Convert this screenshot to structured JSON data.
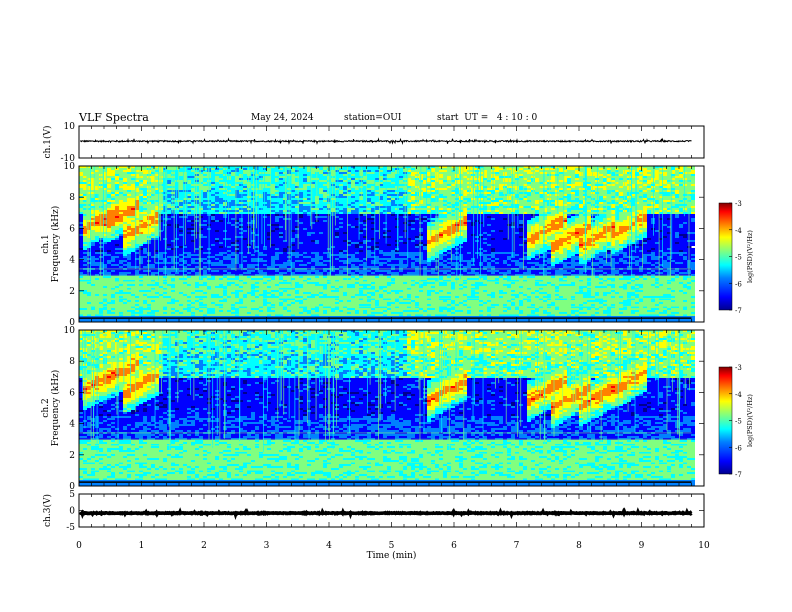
{
  "header": {
    "title": "VLF Spectra",
    "date": "May 24, 2024",
    "station": "station=OUI",
    "start": "start  UT =   4 : 10 : 0"
  },
  "colors": {
    "axis": "#000000",
    "colormap": [
      "#00008f",
      "#0000ff",
      "#0080ff",
      "#00ffff",
      "#80ff80",
      "#ffff00",
      "#ff8000",
      "#ff0000",
      "#800000"
    ],
    "background": "#ffffff"
  },
  "chart_data": [
    {
      "type": "line",
      "panel": "channel-1 waveform",
      "ylabel": "ch.1(V)",
      "ylim": [
        -10,
        10
      ],
      "y_ticks": [
        "10",
        "-10"
      ],
      "xlim": [
        0,
        10
      ],
      "trace_level": 0.5,
      "trace_amplitude": 0.4
    },
    {
      "type": "heatmap",
      "panel": "channel-1 spectrogram",
      "ylabel": "ch.1 Frequency (kHz)",
      "ylim": [
        0,
        10
      ],
      "y_ticks": [
        "0",
        "2",
        "4",
        "6",
        "8",
        "10"
      ],
      "xlim": [
        0,
        10
      ],
      "data_end": 9.8,
      "chorus_bursts": [
        [
          0.05,
          6.0
        ],
        [
          0.4,
          6.4
        ],
        [
          0.7,
          5.6
        ],
        [
          5.6,
          5.3
        ],
        [
          7.2,
          5.4
        ],
        [
          7.6,
          5.0
        ],
        [
          8.0,
          5.0
        ],
        [
          8.5,
          5.6
        ]
      ],
      "colorbar": {
        "label": "log(PSD)(V²/Hz)",
        "range": [
          -7,
          -3
        ],
        "ticks": [
          "-3",
          "-4",
          "-5",
          "-6",
          "-7"
        ]
      }
    },
    {
      "type": "heatmap",
      "panel": "channel-2 spectrogram",
      "ylabel": "ch.2 Frequency (kHz)",
      "ylim": [
        0,
        10
      ],
      "y_ticks": [
        "0",
        "2",
        "4",
        "6",
        "8",
        "10"
      ],
      "xlim": [
        0,
        10
      ],
      "data_end": 9.8,
      "chorus_bursts": [
        [
          0.05,
          6.2
        ],
        [
          0.4,
          6.8
        ],
        [
          0.7,
          6.0
        ],
        [
          5.6,
          5.6
        ],
        [
          7.2,
          5.6
        ],
        [
          7.6,
          5.2
        ],
        [
          8.0,
          5.2
        ],
        [
          8.5,
          6.2
        ]
      ],
      "colorbar": {
        "label": "log(PSD)(V²/Hz)",
        "range": [
          -7,
          -3
        ],
        "ticks": [
          "-3",
          "-4",
          "-5",
          "-6",
          "-7"
        ]
      }
    },
    {
      "type": "line",
      "panel": "channel-3 waveform",
      "ylabel": "ch.3(V)",
      "ylim": [
        -5,
        5
      ],
      "y_ticks": [
        "5",
        "0",
        "-5"
      ],
      "xlim": [
        0,
        10
      ],
      "xlabel": "Time  (min)",
      "x_ticks": [
        "0",
        "1",
        "2",
        "3",
        "4",
        "5",
        "6",
        "7",
        "8",
        "9",
        "10"
      ],
      "trace_level": -0.8,
      "trace_amplitude": 0.1
    }
  ]
}
